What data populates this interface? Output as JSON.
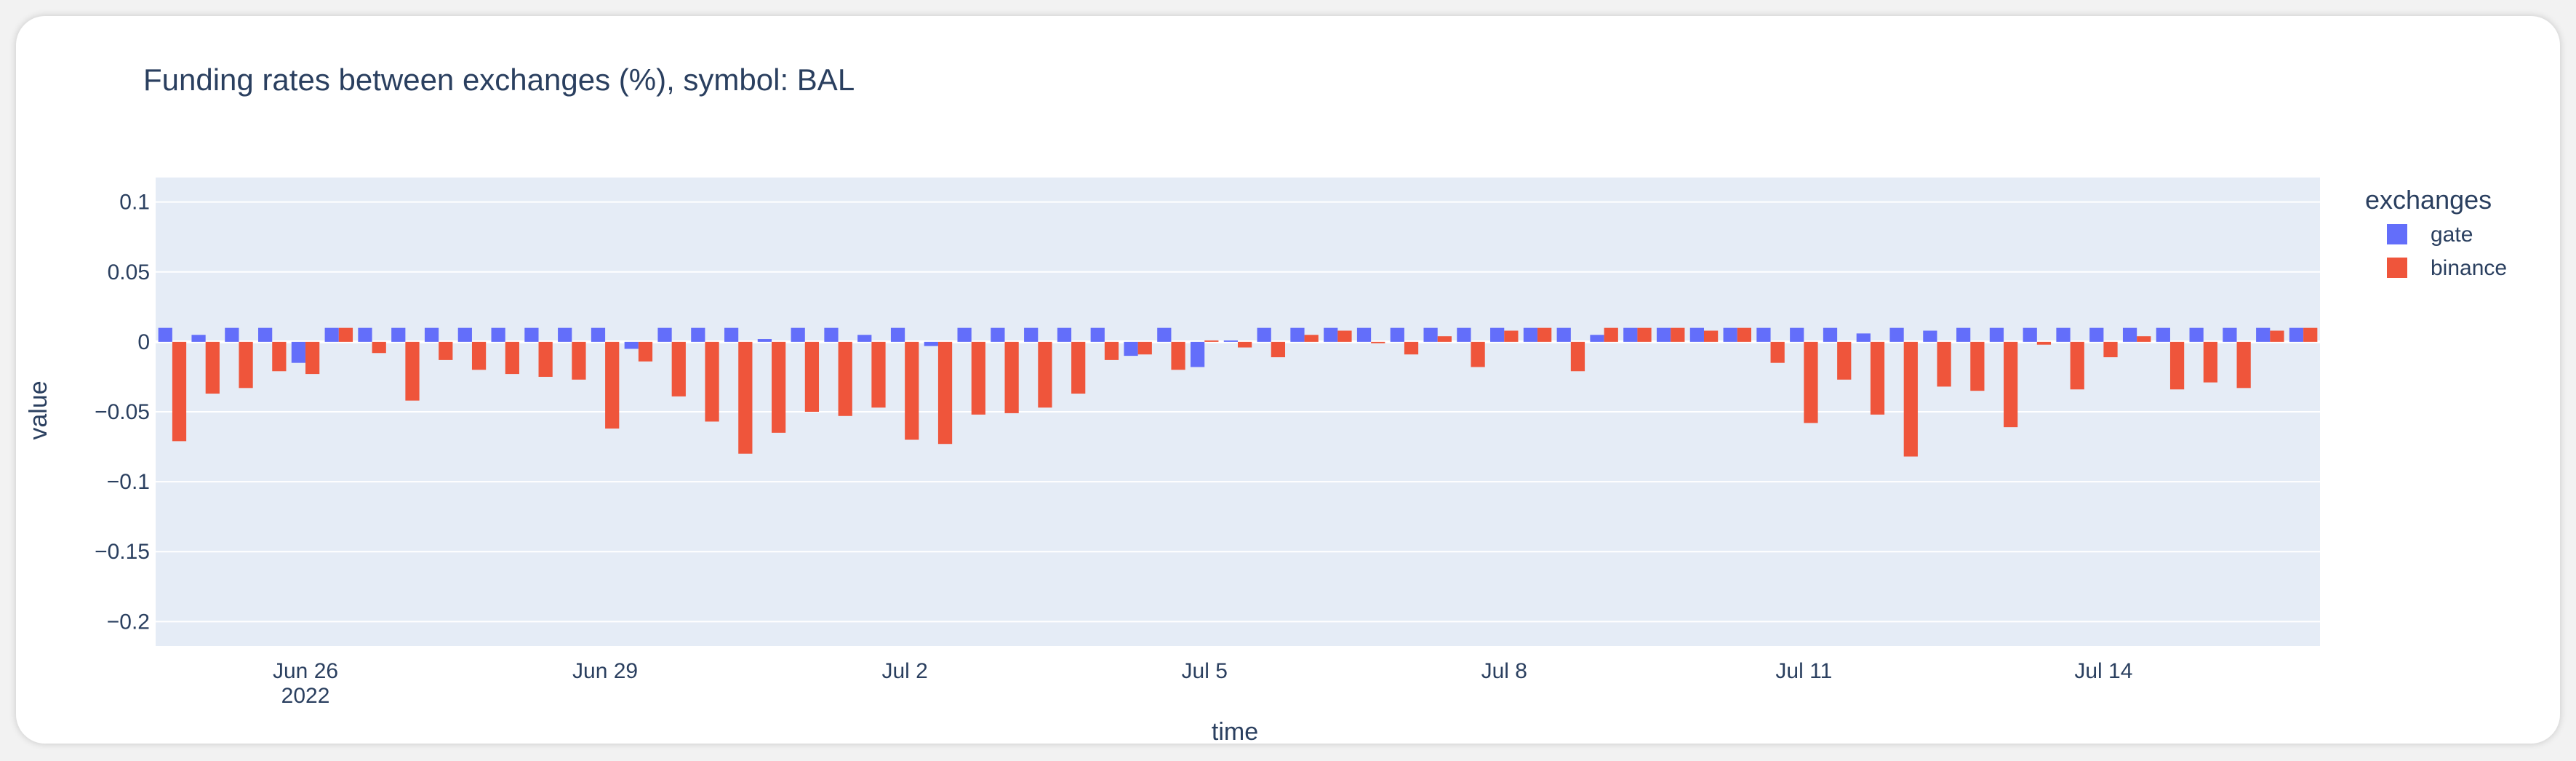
{
  "chart_data": {
    "type": "bar",
    "title": "Funding rates between exchanges (%), symbol: BAL",
    "xlabel": "time",
    "ylabel": "value",
    "ylim": [
      -0.2175,
      0.1175
    ],
    "yticks": [
      {
        "value": 0.1,
        "label": "0.1"
      },
      {
        "value": 0.05,
        "label": "0.05"
      },
      {
        "value": 0,
        "label": "0"
      },
      {
        "value": -0.05,
        "label": "−0.05"
      },
      {
        "value": -0.1,
        "label": "−0.1"
      },
      {
        "value": -0.15,
        "label": "−0.15"
      },
      {
        "value": -0.2,
        "label": "−0.2"
      }
    ],
    "xticks": [
      {
        "index": 4,
        "label": "Jun 26",
        "sublabel": "2022"
      },
      {
        "index": 13,
        "label": "Jun 29",
        "sublabel": ""
      },
      {
        "index": 22,
        "label": "Jul 2",
        "sublabel": ""
      },
      {
        "index": 31,
        "label": "Jul 5",
        "sublabel": ""
      },
      {
        "index": 40,
        "label": "Jul 8",
        "sublabel": ""
      },
      {
        "index": 49,
        "label": "Jul 11",
        "sublabel": ""
      },
      {
        "index": 58,
        "label": "Jul 14",
        "sublabel": ""
      }
    ],
    "legend": {
      "title": "exchanges",
      "position": "right"
    },
    "period_count": 65,
    "series": [
      {
        "name": "gate",
        "color": "#636efa",
        "values": [
          0.01,
          0.005,
          0.01,
          0.01,
          -0.015,
          0.01,
          0.01,
          0.01,
          0.01,
          0.01,
          0.01,
          0.01,
          0.01,
          0.01,
          -0.005,
          0.01,
          0.01,
          0.01,
          0.002,
          0.01,
          0.01,
          0.005,
          0.01,
          -0.003,
          0.01,
          0.01,
          0.01,
          0.01,
          0.01,
          -0.01,
          0.01,
          -0.018,
          0.001,
          0.01,
          0.01,
          0.01,
          0.01,
          0.01,
          0.01,
          0.01,
          0.01,
          0.01,
          0.01,
          0.005,
          0.01,
          0.01,
          0.01,
          0.01,
          0.01,
          0.01,
          0.01,
          0.006,
          0.01,
          0.008,
          0.01,
          0.01,
          0.01,
          0.01,
          0.01,
          0.01,
          0.01,
          0.01,
          0.01,
          0.01,
          0.01
        ]
      },
      {
        "name": "binance",
        "color": "#ef553b",
        "values": [
          -0.071,
          -0.037,
          -0.033,
          -0.021,
          -0.023,
          0.01,
          -0.008,
          -0.042,
          -0.013,
          -0.02,
          -0.023,
          -0.025,
          -0.027,
          -0.062,
          -0.014,
          -0.039,
          -0.057,
          -0.08,
          -0.065,
          -0.05,
          -0.053,
          -0.047,
          -0.07,
          -0.073,
          -0.052,
          -0.051,
          -0.047,
          -0.037,
          -0.013,
          -0.009,
          -0.02,
          0.001,
          -0.004,
          -0.011,
          0.005,
          0.008,
          -0.001,
          -0.009,
          0.004,
          -0.018,
          0.008,
          0.01,
          -0.021,
          0.01,
          0.01,
          0.01,
          0.008,
          0.01,
          -0.015,
          -0.058,
          -0.027,
          -0.052,
          -0.082,
          -0.032,
          -0.035,
          -0.061,
          -0.002,
          -0.034,
          -0.011,
          0.004,
          -0.034,
          -0.029,
          -0.033,
          0.008,
          0.01
        ]
      }
    ]
  }
}
